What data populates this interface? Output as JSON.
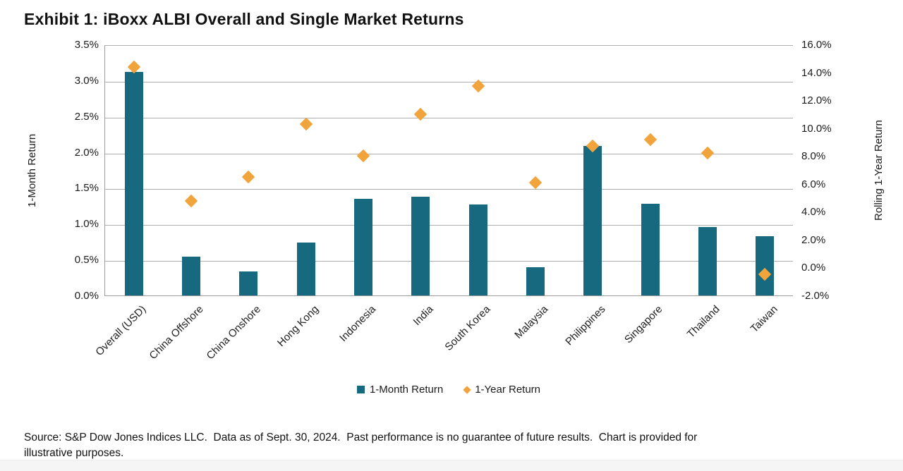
{
  "title": "Exhibit 1: iBoxx ALBI Overall and Single Market Returns",
  "source_note": "Source: S&P Dow Jones Indices LLC.  Data as of Sept. 30, 2024.  Past performance is no guarantee of future results.  Chart is provided for\nillustrative purposes.",
  "colors": {
    "bar_teal": "#16697F",
    "marker_orange": "#F1A33C",
    "gridline_gray": "#AEAEAE",
    "footer_strip_gray": "#F5F5F5"
  },
  "chart_data": {
    "type": "bar",
    "subtype": "combo-bar-and-scatter-diamond",
    "title": "Exhibit 1: iBoxx ALBI Overall and Single Market Returns",
    "categories": [
      "Overall (USD)",
      "China Offshore",
      "China Onshore",
      "Hong Kong",
      "Indonesia",
      "India",
      "South Korea",
      "Malaysia",
      "Philippines",
      "Singapore",
      "Thailand",
      "Taiwan"
    ],
    "series": [
      {
        "name": "1-Month Return",
        "render": "bar",
        "axis": "left",
        "color": "#16697F",
        "values": [
          3.12,
          0.54,
          0.33,
          0.74,
          1.35,
          1.38,
          1.27,
          0.39,
          2.08,
          1.28,
          0.95,
          0.83
        ]
      },
      {
        "name": "1-Year Return",
        "render": "scatter",
        "marker": "diamond",
        "axis": "right",
        "color": "#F1A33C",
        "values": [
          14.5,
          4.9,
          6.6,
          10.4,
          8.1,
          11.1,
          13.1,
          6.2,
          8.8,
          9.3,
          8.3,
          -0.4
        ]
      }
    ],
    "left_axis": {
      "title": "1-Month Return",
      "min": 0.0,
      "max": 3.5,
      "tick_step": 0.5,
      "tick_labels": [
        "3.5%",
        "3.0%",
        "2.5%",
        "2.0%",
        "1.5%",
        "1.0%",
        "0.5%",
        "0.0%"
      ]
    },
    "right_axis": {
      "title": "Rolling 1-Year Return",
      "min": -2.0,
      "max": 16.0,
      "tick_step": 2.0,
      "tick_labels": [
        "16.0%",
        "14.0%",
        "12.0%",
        "10.0%",
        "8.0%",
        "6.0%",
        "4.0%",
        "2.0%",
        "0.0%",
        "-2.0%"
      ]
    },
    "legend": {
      "position": "bottom",
      "items": [
        {
          "label": "1-Month Return",
          "marker": "square",
          "color": "#16697F"
        },
        {
          "label": "1-Year Return",
          "marker": "diamond",
          "color": "#F1A33C"
        }
      ]
    },
    "grid": "horizontal",
    "category_label_rotation_deg": -45
  }
}
